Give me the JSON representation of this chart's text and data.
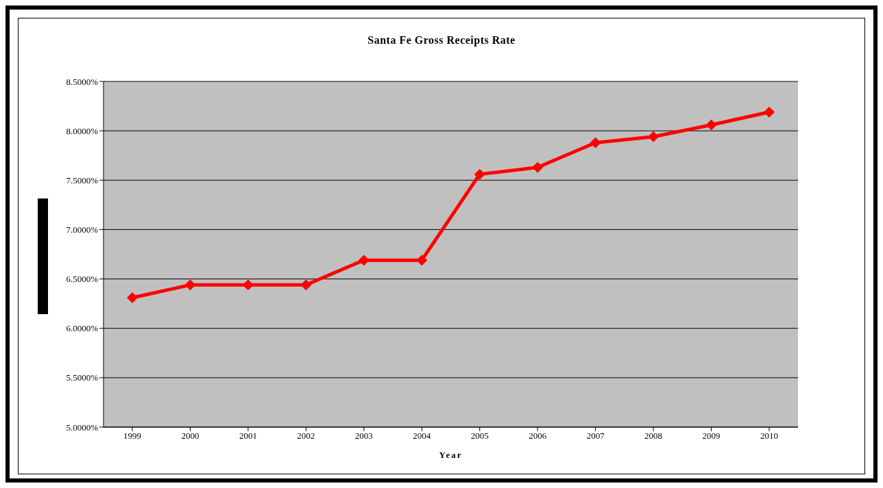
{
  "chart_data": {
    "type": "line",
    "title": "Santa Fe Gross Receipts Rate",
    "xlabel": "Year",
    "categories": [
      "1999",
      "2000",
      "2001",
      "2002",
      "2003",
      "2004",
      "2005",
      "2006",
      "2007",
      "2008",
      "2009",
      "2010"
    ],
    "series": [
      {
        "color": "#ff0000",
        "values": [
          6.31,
          6.44,
          6.44,
          6.44,
          6.69,
          6.69,
          7.56,
          7.63,
          7.88,
          7.94,
          8.06,
          8.19
        ]
      }
    ],
    "ylim": [
      5,
      8.5
    ],
    "yticks": [
      {
        "value": 5,
        "label": "5.0000%"
      },
      {
        "value": 5.5,
        "label": "5.5000%"
      },
      {
        "value": 6,
        "label": "6.0000%"
      },
      {
        "value": 6.5,
        "label": "6.5000%"
      },
      {
        "value": 7,
        "label": "7.0000%"
      },
      {
        "value": 7.5,
        "label": "7.5000%"
      },
      {
        "value": 8,
        "label": "8.0000%"
      },
      {
        "value": 8.5,
        "label": "8.5000%"
      }
    ],
    "grid": "y",
    "legend": false,
    "marker": "diamond",
    "line_style": "solid"
  }
}
